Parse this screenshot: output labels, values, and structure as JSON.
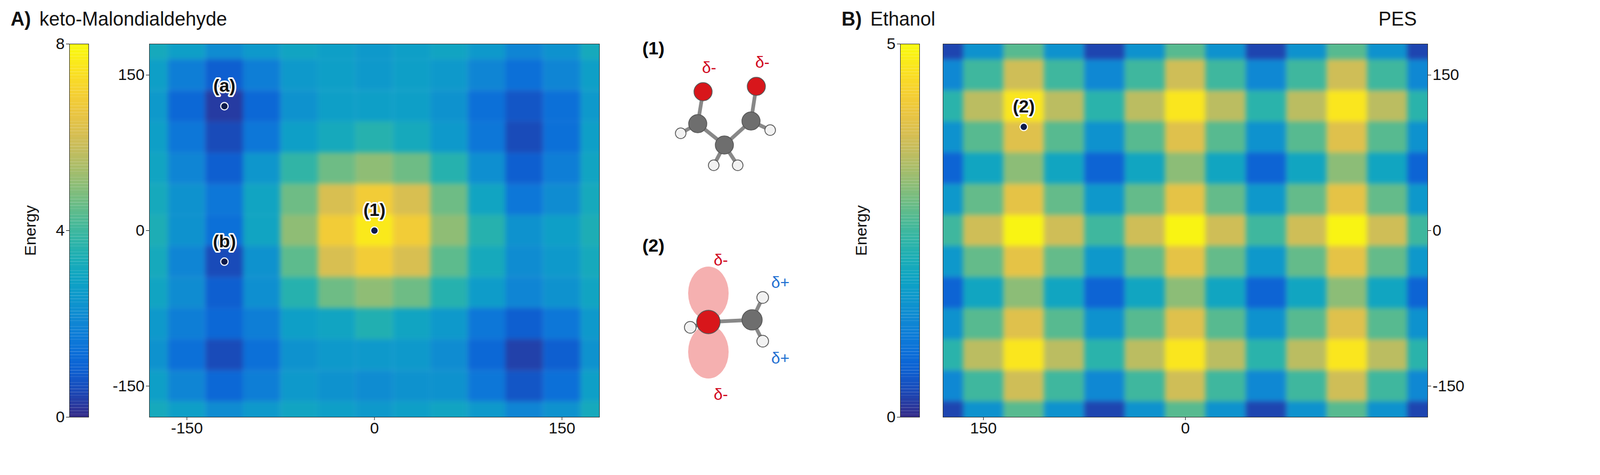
{
  "chart_data": [
    {
      "type": "heatmap",
      "panel": "A)",
      "title": "keto-Malondialdehyde",
      "x": [
        -180,
        -150,
        -120,
        -90,
        -60,
        -30,
        0,
        30,
        60,
        90,
        120,
        150,
        180
      ],
      "y": [
        -180,
        -150,
        -120,
        -90,
        -60,
        -30,
        0,
        30,
        60,
        90,
        120,
        150,
        180
      ],
      "values": [
        [
          3.2,
          2.8,
          2.2,
          2.6,
          3.0,
          2.8,
          2.6,
          2.8,
          3.0,
          2.6,
          2.0,
          2.4,
          3.2
        ],
        [
          2.8,
          2.0,
          1.2,
          1.8,
          2.6,
          2.4,
          2.2,
          2.4,
          2.4,
          1.6,
          0.8,
          1.4,
          2.8
        ],
        [
          2.4,
          1.4,
          0.6,
          1.4,
          2.4,
          2.6,
          2.6,
          2.6,
          2.2,
          1.2,
          0.4,
          1.0,
          2.4
        ],
        [
          2.6,
          1.8,
          1.2,
          1.8,
          2.8,
          3.0,
          3.5,
          3.0,
          2.6,
          1.6,
          1.0,
          1.6,
          2.6
        ],
        [
          3.0,
          2.2,
          1.0,
          2.3,
          3.6,
          4.6,
          5.0,
          4.6,
          3.6,
          2.7,
          2.0,
          2.4,
          3.0
        ],
        [
          3.2,
          2.0,
          0.6,
          2.4,
          4.4,
          6.1,
          6.8,
          6.1,
          4.4,
          3.2,
          2.2,
          2.6,
          3.2
        ],
        [
          3.4,
          2.4,
          1.4,
          3.0,
          5.0,
          6.8,
          7.6,
          6.8,
          5.0,
          3.6,
          2.4,
          2.8,
          3.4
        ],
        [
          3.2,
          2.4,
          1.6,
          3.0,
          4.6,
          6.1,
          6.8,
          6.1,
          4.6,
          3.0,
          1.6,
          2.2,
          3.2
        ],
        [
          3.0,
          2.0,
          1.0,
          2.5,
          3.8,
          4.6,
          5.0,
          4.6,
          3.6,
          2.3,
          1.0,
          1.8,
          3.0
        ],
        [
          2.8,
          1.6,
          0.6,
          1.6,
          2.8,
          3.2,
          3.6,
          3.2,
          2.6,
          1.6,
          0.6,
          1.4,
          2.8
        ],
        [
          2.6,
          1.2,
          0.3,
          1.2,
          2.4,
          2.8,
          2.8,
          2.8,
          2.4,
          1.4,
          0.8,
          1.4,
          2.6
        ],
        [
          2.8,
          1.8,
          1.0,
          1.8,
          2.6,
          2.8,
          2.6,
          2.8,
          2.6,
          2.0,
          1.4,
          2.0,
          2.8
        ],
        [
          3.2,
          2.8,
          2.2,
          2.6,
          3.0,
          2.8,
          2.6,
          2.8,
          3.0,
          2.6,
          2.0,
          2.4,
          3.2
        ]
      ],
      "xlim": [
        -180,
        180
      ],
      "xticks": [
        -150,
        0,
        150
      ],
      "ylim": [
        -180,
        180
      ],
      "yticks": [
        -150,
        0,
        150
      ],
      "colorbar": {
        "label": "Energy",
        "lim": [
          0,
          8
        ],
        "ticks": [
          0,
          4,
          8
        ]
      },
      "annotations": [
        {
          "text": "(1)",
          "x": 0,
          "y": 0
        },
        {
          "text": "(a)",
          "x": -120,
          "y": 120
        },
        {
          "text": "(b)",
          "x": -120,
          "y": -30
        }
      ],
      "insets": [
        {
          "label": "(1)",
          "charges": [
            "δ-",
            "δ-"
          ]
        },
        {
          "label": "(2)",
          "charges": [
            "δ-",
            "δ+",
            "δ-",
            "δ+"
          ]
        }
      ]
    },
    {
      "type": "heatmap",
      "panel": "B)",
      "title": "Ethanol",
      "surface_label": "PES",
      "x": [
        -180,
        -150,
        -120,
        -90,
        -60,
        -30,
        0,
        30,
        60,
        90,
        120,
        150,
        180
      ],
      "y": [
        -180,
        -150,
        -120,
        -90,
        -60,
        -30,
        0,
        30,
        60,
        90,
        120,
        150,
        180
      ],
      "values": [
        [
          0.3,
          1.5,
          2.7,
          1.5,
          0.3,
          1.5,
          2.7,
          1.5,
          0.3,
          1.5,
          2.7,
          1.5,
          0.3
        ],
        [
          1.3,
          2.5,
          3.7,
          2.5,
          1.3,
          2.5,
          3.7,
          2.5,
          1.3,
          2.5,
          3.7,
          2.5,
          1.3
        ],
        [
          2.3,
          3.5,
          4.7,
          3.5,
          2.3,
          3.5,
          4.7,
          3.5,
          2.3,
          3.5,
          4.7,
          3.5,
          2.3
        ],
        [
          1.5,
          2.7,
          3.9,
          2.7,
          1.5,
          2.7,
          3.9,
          2.7,
          1.5,
          2.7,
          3.9,
          2.7,
          1.5
        ],
        [
          0.7,
          1.9,
          3.1,
          1.9,
          0.7,
          1.9,
          3.1,
          1.9,
          0.7,
          1.9,
          3.1,
          1.9,
          0.7
        ],
        [
          1.6,
          2.8,
          4.0,
          2.8,
          1.6,
          2.8,
          4.0,
          2.8,
          1.6,
          2.8,
          4.0,
          2.8,
          1.6
        ],
        [
          2.5,
          3.7,
          4.9,
          3.7,
          2.5,
          3.7,
          4.9,
          3.7,
          2.5,
          3.7,
          4.9,
          3.7,
          2.5
        ],
        [
          1.6,
          2.8,
          4.0,
          2.8,
          1.6,
          2.8,
          4.0,
          2.8,
          1.6,
          2.8,
          4.0,
          2.8,
          1.6
        ],
        [
          0.7,
          1.9,
          3.1,
          1.9,
          0.7,
          1.9,
          3.1,
          1.9,
          0.7,
          1.9,
          3.1,
          1.9,
          0.7
        ],
        [
          1.5,
          2.7,
          3.9,
          2.7,
          1.5,
          2.7,
          3.9,
          2.7,
          1.5,
          2.7,
          3.9,
          2.7,
          1.5
        ],
        [
          2.3,
          3.5,
          4.7,
          3.5,
          2.3,
          3.5,
          4.7,
          3.5,
          2.3,
          3.5,
          4.7,
          3.5,
          2.3
        ],
        [
          1.3,
          2.5,
          3.7,
          2.5,
          1.3,
          2.5,
          3.7,
          2.5,
          1.3,
          2.5,
          3.7,
          2.5,
          1.3
        ],
        [
          0.3,
          1.5,
          2.7,
          1.5,
          0.3,
          1.5,
          2.7,
          1.5,
          0.3,
          1.5,
          2.7,
          1.5,
          0.3
        ]
      ],
      "xlim": [
        180,
        -180
      ],
      "xticks": [
        150,
        0
      ],
      "ylim": [
        -180,
        180
      ],
      "yticks": [
        150,
        0,
        -150
      ],
      "colorbar": {
        "label": "Energy",
        "lim": [
          0,
          5
        ],
        "ticks": [
          0,
          5
        ]
      },
      "annotations": [
        {
          "text": "(2)",
          "x": 120,
          "y": 100
        }
      ]
    }
  ]
}
